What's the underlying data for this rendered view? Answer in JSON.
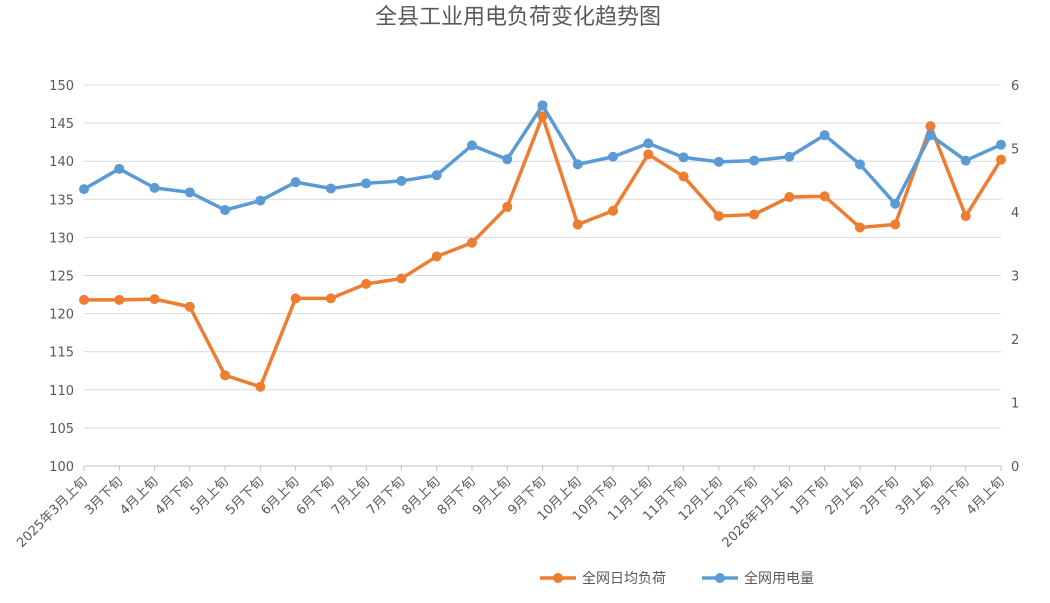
{
  "chart_data": {
    "type": "line",
    "title": "全县工业用电负荷变化趋势图",
    "categories": [
      "2025年3月上旬",
      "3月下旬",
      "4月上旬",
      "4月下旬",
      "5月上旬",
      "5月下旬",
      "6月上旬",
      "6月下旬",
      "7月上旬",
      "7月下旬",
      "8月上旬",
      "8月下旬",
      "9月上旬",
      "9月下旬",
      "10月上旬",
      "10月下旬",
      "11月上旬",
      "11月下旬",
      "12月上旬",
      "12月下旬",
      "2026年1月上旬",
      "1月下旬",
      "2月上旬",
      "2月下旬",
      "3月上旬",
      "3月下旬",
      "4月上旬"
    ],
    "series": [
      {
        "name": "全网日均负荷",
        "axis": "left",
        "color": "#ED7D31",
        "values": [
          121.8,
          121.8,
          121.9,
          120.9,
          111.9,
          110.4,
          122.0,
          122.0,
          123.9,
          124.6,
          127.5,
          129.3,
          134.0,
          145.9,
          131.7,
          133.5,
          140.9,
          138.0,
          132.8,
          133.0,
          135.3,
          135.4,
          131.3,
          131.7,
          144.6,
          132.8,
          140.2
        ]
      },
      {
        "name": "全网用电量",
        "axis": "right",
        "color": "#5B9BD5",
        "values": [
          4.36,
          4.68,
          4.38,
          4.31,
          4.03,
          4.18,
          4.47,
          4.37,
          4.45,
          4.49,
          4.58,
          5.05,
          4.83,
          5.68,
          4.75,
          4.87,
          5.08,
          4.86,
          4.79,
          4.81,
          4.87,
          5.21,
          4.75,
          4.13,
          5.21,
          4.81,
          5.06
        ]
      }
    ],
    "y_left": {
      "min": 100,
      "max": 150,
      "step": 5,
      "ticks": [
        "100",
        "105",
        "110",
        "115",
        "120",
        "125",
        "130",
        "135",
        "140",
        "145",
        "150"
      ]
    },
    "y_right": {
      "min": 0,
      "max": 6,
      "step": 1,
      "ticks": [
        "0",
        "1",
        "2",
        "3",
        "4",
        "5",
        "6"
      ]
    },
    "grid": true,
    "legend": "bottom"
  }
}
